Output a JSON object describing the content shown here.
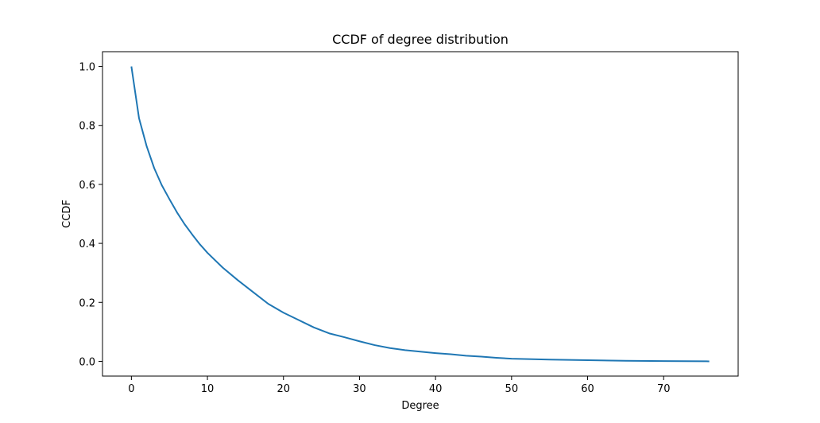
{
  "chart_data": {
    "type": "line",
    "title": "CCDF of degree distribution",
    "xlabel": "Degree",
    "ylabel": "CCDF",
    "xlim": [
      -3.8,
      79.8
    ],
    "ylim": [
      -0.05,
      1.05
    ],
    "xticks": [
      0,
      10,
      20,
      30,
      40,
      50,
      60,
      70
    ],
    "yticks": [
      0.0,
      0.2,
      0.4,
      0.6,
      0.8,
      1.0
    ],
    "ytick_labels": [
      "0.0",
      "0.2",
      "0.4",
      "0.6",
      "0.8",
      "1.0"
    ],
    "grid": false,
    "legend": "none",
    "series": [
      {
        "color": "#1f77b4",
        "x": [
          0,
          1,
          2,
          3,
          4,
          5,
          6,
          7,
          8,
          9,
          10,
          12,
          14,
          16,
          18,
          20,
          22,
          24,
          26,
          28,
          30,
          32,
          34,
          36,
          38,
          40,
          42,
          44,
          46,
          48,
          50,
          55,
          60,
          65,
          70,
          76
        ],
        "y": [
          1.0,
          0.825,
          0.73,
          0.655,
          0.597,
          0.55,
          0.505,
          0.465,
          0.43,
          0.397,
          0.368,
          0.318,
          0.275,
          0.235,
          0.195,
          0.165,
          0.14,
          0.115,
          0.095,
          0.082,
          0.068,
          0.055,
          0.045,
          0.038,
          0.033,
          0.028,
          0.024,
          0.019,
          0.016,
          0.012,
          0.009,
          0.006,
          0.004,
          0.002,
          0.001,
          0.0
        ]
      }
    ]
  }
}
